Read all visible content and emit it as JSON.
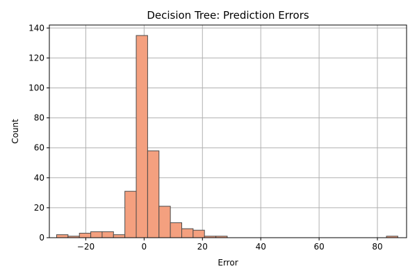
{
  "chart_data": {
    "type": "bar",
    "title": "Decision Tree: Prediction Errors",
    "xlabel": "Error",
    "ylabel": "Count",
    "xlim": [
      -32.5,
      90
    ],
    "ylim": [
      0,
      142
    ],
    "grid": true,
    "bar_color": "#f4a07f",
    "edge_color": "#4a4a4a",
    "x_ticks": [
      -20,
      0,
      20,
      40,
      60,
      80
    ],
    "y_ticks": [
      0,
      20,
      40,
      60,
      80,
      100,
      120,
      140
    ],
    "x_tick_labels": [
      "−20",
      "0",
      "20",
      "40",
      "60",
      "80"
    ],
    "y_tick_labels": [
      "0",
      "20",
      "40",
      "60",
      "80",
      "100",
      "120",
      "140"
    ],
    "bins": [
      {
        "x0": -30.0,
        "x1": -26.1,
        "count": 2
      },
      {
        "x0": -26.1,
        "x1": -22.2,
        "count": 1
      },
      {
        "x0": -22.2,
        "x1": -18.3,
        "count": 3
      },
      {
        "x0": -18.3,
        "x1": -14.4,
        "count": 4
      },
      {
        "x0": -14.4,
        "x1": -10.5,
        "count": 4
      },
      {
        "x0": -10.5,
        "x1": -6.6,
        "count": 2
      },
      {
        "x0": -6.6,
        "x1": -2.7,
        "count": 31
      },
      {
        "x0": -2.7,
        "x1": 1.2,
        "count": 135
      },
      {
        "x0": 1.2,
        "x1": 5.1,
        "count": 58
      },
      {
        "x0": 5.1,
        "x1": 9.0,
        "count": 21
      },
      {
        "x0": 9.0,
        "x1": 12.9,
        "count": 10
      },
      {
        "x0": 12.9,
        "x1": 16.8,
        "count": 6
      },
      {
        "x0": 16.8,
        "x1": 20.7,
        "count": 5
      },
      {
        "x0": 20.7,
        "x1": 24.6,
        "count": 1
      },
      {
        "x0": 24.6,
        "x1": 28.5,
        "count": 1
      },
      {
        "x0": 28.5,
        "x1": 32.4,
        "count": 0
      },
      {
        "x0": 32.4,
        "x1": 36.3,
        "count": 0
      },
      {
        "x0": 36.3,
        "x1": 40.2,
        "count": 0
      },
      {
        "x0": 40.2,
        "x1": 44.1,
        "count": 0
      },
      {
        "x0": 44.1,
        "x1": 48.0,
        "count": 0
      },
      {
        "x0": 48.0,
        "x1": 51.9,
        "count": 0
      },
      {
        "x0": 51.9,
        "x1": 55.8,
        "count": 0
      },
      {
        "x0": 55.8,
        "x1": 59.7,
        "count": 0
      },
      {
        "x0": 59.7,
        "x1": 63.6,
        "count": 0
      },
      {
        "x0": 63.6,
        "x1": 67.5,
        "count": 0
      },
      {
        "x0": 67.5,
        "x1": 71.4,
        "count": 0
      },
      {
        "x0": 71.4,
        "x1": 75.3,
        "count": 0
      },
      {
        "x0": 75.3,
        "x1": 79.2,
        "count": 0
      },
      {
        "x0": 79.2,
        "x1": 83.1,
        "count": 0
      },
      {
        "x0": 83.1,
        "x1": 87.0,
        "count": 1
      }
    ]
  }
}
